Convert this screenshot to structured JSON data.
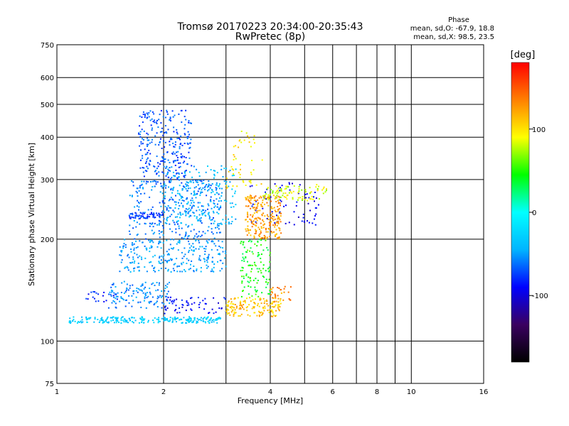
{
  "header": {
    "title_line1": "Tromsø 20170223 20:34:00-20:35:43",
    "title_line2": "RwPretec (8p)",
    "phase_title": "Phase",
    "phase_o": "mean, sd,O: -67.9, 18.8",
    "phase_x": "mean, sd,X:  98.5, 23.5"
  },
  "chart_data": {
    "type": "scatter",
    "title": "Tromsø 20170223 20:34:00-20:35:43",
    "subtitle": "RwPretec (8p)",
    "xlabel": "Frequency [MHz]",
    "ylabel": "Stationary phase Virtual Height [km]",
    "x_scale": "log",
    "y_scale": "log",
    "xlim": [
      1,
      16
    ],
    "ylim": [
      75,
      750
    ],
    "x_ticks": [
      1,
      2,
      4,
      6,
      8,
      10,
      16
    ],
    "x_grid": [
      2,
      3,
      4,
      5,
      6,
      7,
      8,
      9,
      10,
      16
    ],
    "y_ticks": [
      75,
      100,
      200,
      300,
      400,
      500,
      600,
      750
    ],
    "y_grid": [
      100,
      200,
      300,
      400,
      500,
      600
    ],
    "colorbar": {
      "label": "[deg]",
      "range": [
        -180,
        180
      ],
      "ticks": [
        100,
        0,
        -100
      ],
      "colors": [
        "#000000",
        "#3a0060",
        "#0000ff",
        "#00b4ff",
        "#00ffff",
        "#00ff00",
        "#ffff00",
        "#ff8000",
        "#ff0000"
      ]
    },
    "series": [
      {
        "name": "O",
        "mean": -67.9,
        "sd": 18.8,
        "clusters": [
          {
            "f": [
              1.08,
              2.9
            ],
            "h": [
              113,
              118
            ],
            "phase": -30,
            "n": 240
          },
          {
            "f": [
              1.4,
              2.1
            ],
            "h": [
              125,
              150
            ],
            "phase": -55,
            "n": 130
          },
          {
            "f": [
              1.5,
              3.0
            ],
            "h": [
              160,
              200
            ],
            "phase": -50,
            "n": 260
          },
          {
            "f": [
              1.6,
              2.9
            ],
            "h": [
              200,
              300
            ],
            "phase": -60,
            "n": 320
          },
          {
            "f": [
              1.7,
              2.4
            ],
            "h": [
              300,
              480
            ],
            "phase": -70,
            "n": 260
          },
          {
            "f": [
              2.0,
              3.2
            ],
            "h": [
              220,
              330
            ],
            "phase": -40,
            "n": 200
          },
          {
            "f": [
              1.6,
              2.0
            ],
            "h": [
              230,
              240
            ],
            "phase": -75,
            "n": 60
          },
          {
            "f": [
              1.2,
              1.5
            ],
            "h": [
              130,
              140
            ],
            "phase": -80,
            "n": 20
          },
          {
            "f": [
              3.5,
              5.5
            ],
            "h": [
              220,
              300
            ],
            "phase": -95,
            "n": 70
          },
          {
            "f": [
              2.0,
              3.0
            ],
            "h": [
              120,
              135
            ],
            "phase": -90,
            "n": 60
          }
        ]
      },
      {
        "name": "X",
        "mean": 98.5,
        "sd": 23.5,
        "clusters": [
          {
            "f": [
              3.0,
              4.3
            ],
            "h": [
              118,
              135
            ],
            "phase": 110,
            "n": 150
          },
          {
            "f": [
              3.3,
              4.0
            ],
            "h": [
              135,
              200
            ],
            "phase": 45,
            "n": 120
          },
          {
            "f": [
              3.4,
              4.3
            ],
            "h": [
              200,
              270
            ],
            "phase": 125,
            "n": 240
          },
          {
            "f": [
              3.8,
              5.8
            ],
            "h": [
              260,
              290
            ],
            "phase": 85,
            "n": 90
          },
          {
            "f": [
              4.0,
              4.6
            ],
            "h": [
              130,
              145
            ],
            "phase": 130,
            "n": 30
          },
          {
            "f": [
              3.0,
              3.8
            ],
            "h": [
              280,
              420
            ],
            "phase": 100,
            "n": 50
          }
        ]
      }
    ]
  }
}
